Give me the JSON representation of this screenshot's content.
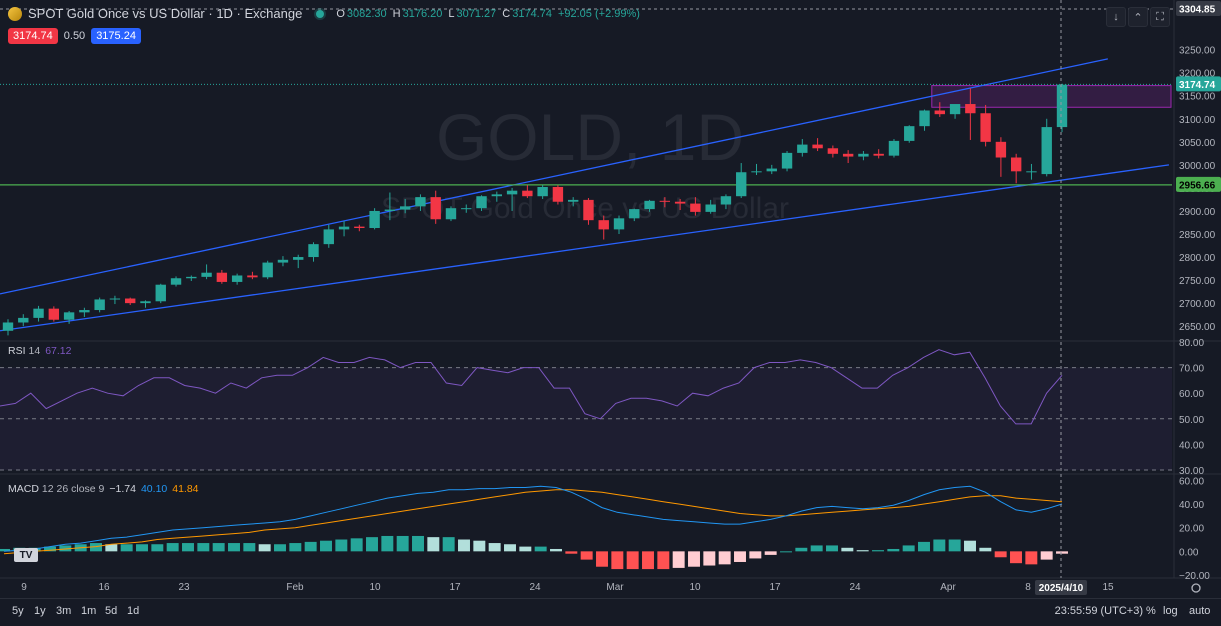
{
  "header": {
    "symbol_title": "SPOT Gold Once vs US Dollar · 1D · Exchange",
    "o_label": "O",
    "o_value": "3082.30",
    "h_label": "H",
    "h_value": "3176.20",
    "l_label": "L",
    "l_value": "3071.27",
    "c_label": "C",
    "c_value": "3174.74",
    "change": "+92.05 (+2.99%)",
    "sell_price": "3174.74",
    "spread": "0.50",
    "buy_price": "3175.24"
  },
  "watermark": {
    "ticker": "GOLD, 1D",
    "description": "SPOT Gold Once vs US Dollar"
  },
  "toolbar_icons": [
    "arrow-down-icon",
    "chevron-up-icon",
    "expand-icon",
    "screenshot-icon"
  ],
  "indicators": {
    "rsi": {
      "name": "RSI",
      "params": "14",
      "value": "67.12"
    },
    "macd": {
      "name": "MACD",
      "params": "12 26 close 9",
      "v1": "−1.74",
      "v2": "40.10",
      "v3": "41.84"
    }
  },
  "price_labels": {
    "crosshair": "3304.85",
    "last_price": "3174.74",
    "support_level": "2956.66"
  },
  "crosshair_date": "2025/4/10",
  "time_range_buttons": [
    "5y",
    "1y",
    "3m",
    "1m",
    "5d",
    "1d"
  ],
  "clock": "23:55:59 (UTC+3)",
  "scale_options": [
    "%",
    "log",
    "auto"
  ],
  "colors": {
    "up": "#26a69a",
    "down": "#f23645",
    "channel": "#2962ff",
    "support": "#4caf50",
    "rsi": "#7e57c2",
    "macd": "#2196f3",
    "signal": "#ff9800",
    "zone": "#9c27b0"
  },
  "chart_data": [
    {
      "type": "candlestick",
      "title": "SPOT Gold Once vs US Dollar · 1D",
      "y_ticks": [
        2650,
        2700,
        2750,
        2800,
        2850,
        2900,
        2950,
        3000,
        3050,
        3100,
        3150,
        3200,
        3250
      ],
      "x_tick_labels": [
        "9",
        "16",
        "23",
        "Feb",
        "10",
        "17",
        "24",
        "Mar",
        "10",
        "17",
        "24",
        "Apr",
        "8",
        "15"
      ],
      "ylim": [
        2620,
        3310
      ],
      "candles": [
        {
          "o": 2640,
          "h": 2665,
          "l": 2630,
          "c": 2658
        },
        {
          "o": 2658,
          "h": 2676,
          "l": 2650,
          "c": 2668
        },
        {
          "o": 2668,
          "h": 2694,
          "l": 2660,
          "c": 2688
        },
        {
          "o": 2688,
          "h": 2693,
          "l": 2660,
          "c": 2664
        },
        {
          "o": 2664,
          "h": 2683,
          "l": 2655,
          "c": 2680
        },
        {
          "o": 2680,
          "h": 2690,
          "l": 2670,
          "c": 2685
        },
        {
          "o": 2685,
          "h": 2712,
          "l": 2680,
          "c": 2708
        },
        {
          "o": 2708,
          "h": 2716,
          "l": 2698,
          "c": 2710
        },
        {
          "o": 2710,
          "h": 2712,
          "l": 2696,
          "c": 2700
        },
        {
          "o": 2700,
          "h": 2706,
          "l": 2690,
          "c": 2704
        },
        {
          "o": 2704,
          "h": 2742,
          "l": 2700,
          "c": 2740
        },
        {
          "o": 2740,
          "h": 2758,
          "l": 2736,
          "c": 2754
        },
        {
          "o": 2754,
          "h": 2760,
          "l": 2748,
          "c": 2757
        },
        {
          "o": 2757,
          "h": 2784,
          "l": 2752,
          "c": 2766
        },
        {
          "o": 2766,
          "h": 2772,
          "l": 2742,
          "c": 2746
        },
        {
          "o": 2746,
          "h": 2764,
          "l": 2740,
          "c": 2760
        },
        {
          "o": 2760,
          "h": 2768,
          "l": 2752,
          "c": 2756
        },
        {
          "o": 2756,
          "h": 2792,
          "l": 2752,
          "c": 2788
        },
        {
          "o": 2788,
          "h": 2802,
          "l": 2780,
          "c": 2794
        },
        {
          "o": 2794,
          "h": 2805,
          "l": 2776,
          "c": 2800
        },
        {
          "o": 2800,
          "h": 2832,
          "l": 2790,
          "c": 2828
        },
        {
          "o": 2828,
          "h": 2870,
          "l": 2820,
          "c": 2860
        },
        {
          "o": 2860,
          "h": 2878,
          "l": 2845,
          "c": 2866
        },
        {
          "o": 2866,
          "h": 2870,
          "l": 2856,
          "c": 2863
        },
        {
          "o": 2863,
          "h": 2906,
          "l": 2860,
          "c": 2900
        },
        {
          "o": 2900,
          "h": 2940,
          "l": 2880,
          "c": 2903
        },
        {
          "o": 2903,
          "h": 2926,
          "l": 2895,
          "c": 2910
        },
        {
          "o": 2910,
          "h": 2936,
          "l": 2900,
          "c": 2930
        },
        {
          "o": 2930,
          "h": 2944,
          "l": 2872,
          "c": 2882
        },
        {
          "o": 2882,
          "h": 2910,
          "l": 2878,
          "c": 2906
        },
        {
          "o": 2906,
          "h": 2914,
          "l": 2896,
          "c": 2906
        },
        {
          "o": 2906,
          "h": 2934,
          "l": 2900,
          "c": 2932
        },
        {
          "o": 2932,
          "h": 2942,
          "l": 2920,
          "c": 2936
        },
        {
          "o": 2936,
          "h": 2950,
          "l": 2900,
          "c": 2944
        },
        {
          "o": 2944,
          "h": 2956,
          "l": 2928,
          "c": 2932
        },
        {
          "o": 2932,
          "h": 2956,
          "l": 2926,
          "c": 2952
        },
        {
          "o": 2952,
          "h": 2956,
          "l": 2914,
          "c": 2920
        },
        {
          "o": 2920,
          "h": 2930,
          "l": 2910,
          "c": 2924
        },
        {
          "o": 2924,
          "h": 2928,
          "l": 2870,
          "c": 2880
        },
        {
          "o": 2880,
          "h": 2890,
          "l": 2838,
          "c": 2860
        },
        {
          "o": 2860,
          "h": 2890,
          "l": 2850,
          "c": 2884
        },
        {
          "o": 2884,
          "h": 2905,
          "l": 2878,
          "c": 2904
        },
        {
          "o": 2904,
          "h": 2924,
          "l": 2898,
          "c": 2922
        },
        {
          "o": 2922,
          "h": 2930,
          "l": 2908,
          "c": 2920
        },
        {
          "o": 2920,
          "h": 2926,
          "l": 2902,
          "c": 2916
        },
        {
          "o": 2916,
          "h": 2930,
          "l": 2890,
          "c": 2898
        },
        {
          "o": 2898,
          "h": 2924,
          "l": 2894,
          "c": 2914
        },
        {
          "o": 2914,
          "h": 2936,
          "l": 2904,
          "c": 2932
        },
        {
          "o": 2932,
          "h": 3004,
          "l": 2928,
          "c": 2984
        },
        {
          "o": 2984,
          "h": 3002,
          "l": 2978,
          "c": 2986
        },
        {
          "o": 2986,
          "h": 3000,
          "l": 2980,
          "c": 2992
        },
        {
          "o": 2992,
          "h": 3030,
          "l": 2986,
          "c": 3026
        },
        {
          "o": 3026,
          "h": 3056,
          "l": 3018,
          "c": 3044
        },
        {
          "o": 3044,
          "h": 3058,
          "l": 3030,
          "c": 3036
        },
        {
          "o": 3036,
          "h": 3042,
          "l": 3016,
          "c": 3024
        },
        {
          "o": 3024,
          "h": 3032,
          "l": 3004,
          "c": 3018
        },
        {
          "o": 3018,
          "h": 3030,
          "l": 3010,
          "c": 3024
        },
        {
          "o": 3024,
          "h": 3034,
          "l": 3014,
          "c": 3020
        },
        {
          "o": 3020,
          "h": 3056,
          "l": 3016,
          "c": 3052
        },
        {
          "o": 3052,
          "h": 3086,
          "l": 3048,
          "c": 3084
        },
        {
          "o": 3084,
          "h": 3120,
          "l": 3074,
          "c": 3118
        },
        {
          "o": 3118,
          "h": 3136,
          "l": 3104,
          "c": 3110
        },
        {
          "o": 3110,
          "h": 3130,
          "l": 3100,
          "c": 3132
        },
        {
          "o": 3132,
          "h": 3166,
          "l": 3054,
          "c": 3112
        },
        {
          "o": 3112,
          "h": 3130,
          "l": 3040,
          "c": 3050
        },
        {
          "o": 3050,
          "h": 3060,
          "l": 2974,
          "c": 3016
        },
        {
          "o": 3016,
          "h": 3024,
          "l": 2960,
          "c": 2986
        },
        {
          "o": 2986,
          "h": 3002,
          "l": 2968,
          "c": 2986
        },
        {
          "o": 2980,
          "h": 3100,
          "l": 2975,
          "c": 3082
        },
        {
          "o": 3082,
          "h": 3176,
          "l": 3071,
          "c": 3174
        }
      ],
      "channel_upper": [
        [
          0,
          2720
        ],
        [
          72,
          3230
        ]
      ],
      "channel_lower": [
        [
          0,
          2640
        ],
        [
          76,
          3000
        ]
      ],
      "support_line": 2956.66,
      "resistance_zone": {
        "from_bar": 61,
        "to_bar": 76,
        "low": 3125,
        "high": 3172
      }
    },
    {
      "type": "line",
      "title": "RSI 14",
      "ylim": [
        30,
        80
      ],
      "y_ticks": [
        30,
        40,
        50,
        60,
        70,
        80
      ],
      "bands": [
        50,
        70
      ],
      "values": [
        55,
        56,
        60,
        54,
        57,
        60,
        62,
        60,
        59,
        63,
        66,
        66,
        63,
        62,
        60,
        64,
        62,
        66,
        67,
        67,
        70,
        74,
        72,
        72,
        74,
        73,
        70,
        72,
        72,
        64,
        63,
        70,
        69,
        68,
        70,
        70,
        62,
        62,
        52,
        50,
        56,
        58,
        58,
        57,
        55,
        60,
        59,
        62,
        64,
        70,
        72,
        72,
        73,
        72,
        70,
        66,
        62,
        62,
        67,
        70,
        74,
        77,
        75,
        76,
        66,
        55,
        48,
        48,
        60,
        67
      ]
    },
    {
      "type": "line+bar",
      "title": "MACD 12 26 close 9",
      "ylim": [
        -20,
        62
      ],
      "y_ticks": [
        -20,
        0,
        20,
        40,
        60
      ],
      "macd": [
        0,
        1,
        2,
        4,
        6,
        7,
        9,
        11,
        12,
        14,
        16,
        18,
        19,
        20,
        21,
        22,
        23,
        24,
        25,
        27,
        30,
        33,
        36,
        39,
        42,
        45,
        47,
        49,
        50,
        52,
        52,
        53,
        53,
        54,
        54,
        55,
        54,
        50,
        44,
        37,
        33,
        31,
        29,
        27,
        26,
        25,
        24,
        23,
        23,
        25,
        27,
        30,
        34,
        37,
        38,
        37,
        36,
        37,
        39,
        43,
        48,
        52,
        54,
        55,
        50,
        42,
        35,
        33,
        36,
        40
      ],
      "signal": [
        -2,
        -1,
        0,
        1,
        2,
        3,
        4,
        6,
        7,
        8,
        10,
        11,
        12,
        13,
        14,
        15,
        16,
        18,
        19,
        20,
        22,
        24,
        26,
        28,
        30,
        32,
        34,
        36,
        38,
        40,
        42,
        44,
        46,
        48,
        50,
        51,
        52,
        52,
        51,
        50,
        48,
        46,
        44,
        42,
        40,
        38,
        36,
        34,
        32,
        31,
        30,
        30,
        31,
        32,
        33,
        34,
        35,
        36,
        37,
        38,
        40,
        42,
        44,
        46,
        47,
        47,
        45,
        44,
        43,
        42
      ],
      "histogram": [
        2,
        3,
        3,
        4,
        5,
        6,
        7,
        6,
        6,
        6,
        6,
        7,
        7,
        7,
        7,
        7,
        7,
        6,
        6,
        7,
        8,
        9,
        10,
        11,
        12,
        13,
        13,
        13,
        12,
        12,
        10,
        9,
        7,
        6,
        4,
        4,
        2,
        -2,
        -7,
        -13,
        -15,
        -15,
        -15,
        -15,
        -14,
        -13,
        -12,
        -11,
        -9,
        -6,
        -3,
        0,
        3,
        5,
        5,
        3,
        1,
        1,
        2,
        5,
        8,
        10,
        10,
        9,
        3,
        -5,
        -10,
        -11,
        -7,
        -2
      ]
    }
  ]
}
